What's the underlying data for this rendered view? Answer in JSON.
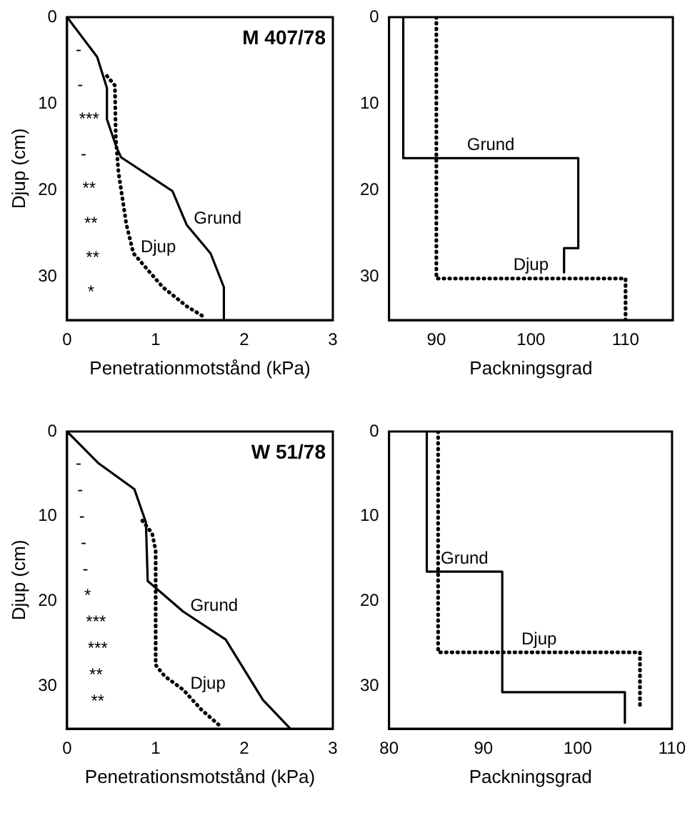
{
  "chart_data": [
    {
      "type": "line",
      "title": "M 407/78",
      "xlabel": "Penetrationmotstånd (kPa)",
      "ylabel": "Djup (cm)",
      "xlim": [
        0,
        3
      ],
      "xticks": [
        0,
        1,
        2,
        3
      ],
      "ylim": [
        35,
        0
      ],
      "yticks": [
        0,
        10,
        20,
        30
      ],
      "grid": false,
      "legend": false,
      "series": [
        {
          "name": "Grund",
          "color": "#000000",
          "line_style": "solid",
          "x": [
            0,
            0.34,
            0.45,
            0.45,
            0.56,
            0.61,
            1.19,
            1.35,
            1.62,
            1.77,
            1.77
          ],
          "values": [
            0,
            4.6,
            8.2,
            11.8,
            15.1,
            16.2,
            20.1,
            24,
            27.3,
            31.2,
            35
          ]
        },
        {
          "name": "Djup",
          "color": "#000000",
          "line_style": "dotted",
          "x": [
            0.45,
            0.54,
            0.55,
            0.58,
            0.67,
            0.75,
            1.08,
            1.35,
            1.54
          ],
          "values": [
            6.8,
            7.9,
            14,
            17.9,
            24,
            27.3,
            31.2,
            33.4,
            34.6
          ]
        }
      ],
      "annotations": [
        "-",
        "-",
        "***",
        "-",
        "**",
        "**",
        "**",
        "*"
      ]
    },
    {
      "type": "line",
      "xlabel": "Packningsgrad",
      "xlim": [
        85,
        115
      ],
      "xticks": [
        90,
        100,
        110
      ],
      "ylim": [
        35,
        0
      ],
      "yticks": [
        0,
        10,
        20,
        30
      ],
      "grid": false,
      "legend": false,
      "series": [
        {
          "name": "Grund",
          "color": "#000000",
          "line_style": "solid",
          "x": [
            86.5,
            86.5,
            105,
            105,
            103.5,
            103.5
          ],
          "values": [
            0,
            16.3,
            16.3,
            26.7,
            26.7,
            29.5
          ]
        },
        {
          "name": "Djup",
          "color": "#000000",
          "line_style": "dotted",
          "x": [
            90,
            90,
            110,
            110
          ],
          "values": [
            0,
            30.2,
            30.2,
            35
          ]
        }
      ]
    },
    {
      "type": "line",
      "title": "W 51/78",
      "xlabel": "Penetrationsmotstånd (kPa)",
      "ylabel": "Djup (cm)",
      "xlim": [
        0,
        3
      ],
      "xticks": [
        0,
        1,
        2,
        3
      ],
      "ylim": [
        35,
        0
      ],
      "yticks": [
        0,
        10,
        20,
        30
      ],
      "grid": false,
      "legend": false,
      "series": [
        {
          "name": "Grund",
          "color": "#000000",
          "line_style": "solid",
          "x": [
            0,
            0.35,
            0.76,
            0.89,
            0.91,
            1.31,
            1.79,
            2.21,
            2.52
          ],
          "values": [
            0,
            3.7,
            6.8,
            10.7,
            17.6,
            21.2,
            24.5,
            31.6,
            35
          ]
        },
        {
          "name": "Djup",
          "color": "#000000",
          "line_style": "dotted",
          "x": [
            0.85,
            0.96,
            1.0,
            1.0,
            1.1,
            1.31,
            1.52,
            1.74
          ],
          "values": [
            10.5,
            12,
            14,
            27.5,
            28.8,
            30.4,
            32.8,
            34.8
          ]
        }
      ],
      "annotations": [
        "-",
        "-",
        "-",
        "-",
        "-",
        "*",
        "***",
        "***",
        "**",
        "**"
      ]
    },
    {
      "type": "line",
      "xlabel": "Packningsgrad",
      "xlim": [
        80,
        110
      ],
      "xticks": [
        80,
        90,
        100,
        110
      ],
      "ylim": [
        35,
        0
      ],
      "yticks": [
        0,
        10,
        20,
        30
      ],
      "grid": false,
      "legend": false,
      "series": [
        {
          "name": "Grund",
          "color": "#000000",
          "line_style": "solid",
          "x": [
            84,
            84,
            92,
            92,
            105,
            105
          ],
          "values": [
            0,
            16.5,
            16.5,
            30.7,
            30.7,
            34.3
          ]
        },
        {
          "name": "Djup",
          "color": "#000000",
          "line_style": "dotted",
          "x": [
            85.2,
            85.2,
            106.6,
            106.6
          ],
          "values": [
            0,
            26,
            26,
            32.6
          ]
        }
      ]
    }
  ]
}
